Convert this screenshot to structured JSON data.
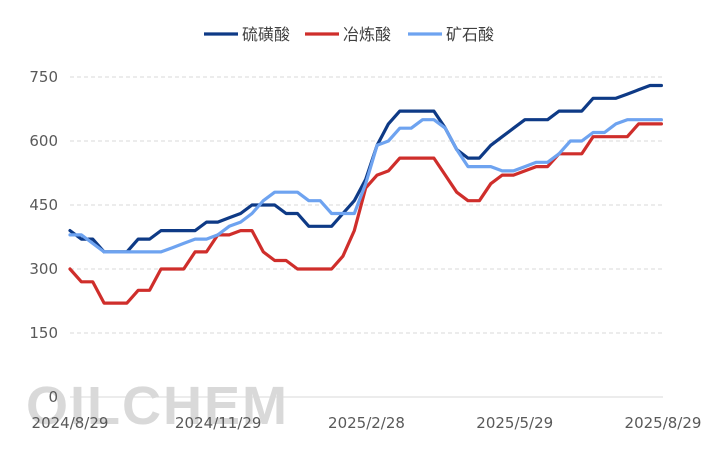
{
  "watermark": "OILCHEM",
  "chart_data": {
    "type": "line",
    "title": "",
    "xlabel": "",
    "ylabel": "",
    "ylim": [
      0,
      750
    ],
    "yticks": [
      0,
      150,
      300,
      450,
      600,
      750
    ],
    "grid": "horizontal-dashed",
    "legend": "top",
    "x_tick_labels": [
      "2024/8/29",
      "2024/11/29",
      "2025/2/28",
      "2025/5/29",
      "2025/8/29"
    ],
    "x_start": "2024-08-29",
    "x_end": "2025-08-29",
    "series": [
      {
        "name": "硫磺酸",
        "color": "#0e3a86",
        "values": [
          [
            "2024-08-29",
            390
          ],
          [
            "2024-09-05",
            370
          ],
          [
            "2024-09-12",
            370
          ],
          [
            "2024-09-19",
            340
          ],
          [
            "2024-09-26",
            340
          ],
          [
            "2024-10-03",
            340
          ],
          [
            "2024-10-10",
            370
          ],
          [
            "2024-10-17",
            370
          ],
          [
            "2024-10-24",
            390
          ],
          [
            "2024-10-31",
            390
          ],
          [
            "2024-11-07",
            390
          ],
          [
            "2024-11-14",
            390
          ],
          [
            "2024-11-21",
            410
          ],
          [
            "2024-11-28",
            410
          ],
          [
            "2024-12-05",
            420
          ],
          [
            "2024-12-12",
            430
          ],
          [
            "2024-12-19",
            450
          ],
          [
            "2024-12-26",
            450
          ],
          [
            "2025-01-02",
            450
          ],
          [
            "2025-01-09",
            430
          ],
          [
            "2025-01-16",
            430
          ],
          [
            "2025-01-23",
            400
          ],
          [
            "2025-01-30",
            400
          ],
          [
            "2025-02-06",
            400
          ],
          [
            "2025-02-13",
            430
          ],
          [
            "2025-02-20",
            460
          ],
          [
            "2025-02-27",
            510
          ],
          [
            "2025-03-06",
            590
          ],
          [
            "2025-03-13",
            640
          ],
          [
            "2025-03-20",
            670
          ],
          [
            "2025-03-27",
            670
          ],
          [
            "2025-04-03",
            670
          ],
          [
            "2025-04-10",
            670
          ],
          [
            "2025-04-17",
            630
          ],
          [
            "2025-04-24",
            580
          ],
          [
            "2025-05-01",
            560
          ],
          [
            "2025-05-08",
            560
          ],
          [
            "2025-05-15",
            590
          ],
          [
            "2025-05-22",
            610
          ],
          [
            "2025-05-29",
            630
          ],
          [
            "2025-06-05",
            650
          ],
          [
            "2025-06-12",
            650
          ],
          [
            "2025-06-19",
            650
          ],
          [
            "2025-06-26",
            670
          ],
          [
            "2025-07-03",
            670
          ],
          [
            "2025-07-10",
            670
          ],
          [
            "2025-07-17",
            700
          ],
          [
            "2025-07-24",
            700
          ],
          [
            "2025-07-31",
            700
          ],
          [
            "2025-08-07",
            710
          ],
          [
            "2025-08-14",
            720
          ],
          [
            "2025-08-21",
            730
          ],
          [
            "2025-08-28",
            730
          ]
        ]
      },
      {
        "name": "冶炼酸",
        "color": "#cf2e2b",
        "values": [
          [
            "2024-08-29",
            300
          ],
          [
            "2024-09-05",
            270
          ],
          [
            "2024-09-12",
            270
          ],
          [
            "2024-09-19",
            220
          ],
          [
            "2024-09-26",
            220
          ],
          [
            "2024-10-03",
            220
          ],
          [
            "2024-10-10",
            250
          ],
          [
            "2024-10-17",
            250
          ],
          [
            "2024-10-24",
            300
          ],
          [
            "2024-10-31",
            300
          ],
          [
            "2024-11-07",
            300
          ],
          [
            "2024-11-14",
            340
          ],
          [
            "2024-11-21",
            340
          ],
          [
            "2024-11-28",
            380
          ],
          [
            "2024-12-05",
            380
          ],
          [
            "2024-12-12",
            390
          ],
          [
            "2024-12-19",
            390
          ],
          [
            "2024-12-26",
            340
          ],
          [
            "2025-01-02",
            320
          ],
          [
            "2025-01-09",
            320
          ],
          [
            "2025-01-16",
            300
          ],
          [
            "2025-01-23",
            300
          ],
          [
            "2025-01-30",
            300
          ],
          [
            "2025-02-06",
            300
          ],
          [
            "2025-02-13",
            330
          ],
          [
            "2025-02-20",
            390
          ],
          [
            "2025-02-27",
            490
          ],
          [
            "2025-03-06",
            520
          ],
          [
            "2025-03-13",
            530
          ],
          [
            "2025-03-20",
            560
          ],
          [
            "2025-03-27",
            560
          ],
          [
            "2025-04-03",
            560
          ],
          [
            "2025-04-10",
            560
          ],
          [
            "2025-04-17",
            520
          ],
          [
            "2025-04-24",
            480
          ],
          [
            "2025-05-01",
            460
          ],
          [
            "2025-05-08",
            460
          ],
          [
            "2025-05-15",
            500
          ],
          [
            "2025-05-22",
            520
          ],
          [
            "2025-05-29",
            520
          ],
          [
            "2025-06-05",
            530
          ],
          [
            "2025-06-12",
            540
          ],
          [
            "2025-06-19",
            540
          ],
          [
            "2025-06-26",
            570
          ],
          [
            "2025-07-03",
            570
          ],
          [
            "2025-07-10",
            570
          ],
          [
            "2025-07-17",
            610
          ],
          [
            "2025-07-24",
            610
          ],
          [
            "2025-07-31",
            610
          ],
          [
            "2025-08-07",
            610
          ],
          [
            "2025-08-14",
            640
          ],
          [
            "2025-08-21",
            640
          ],
          [
            "2025-08-28",
            640
          ]
        ]
      },
      {
        "name": "矿石酸",
        "color": "#6ea3f0",
        "values": [
          [
            "2024-08-29",
            380
          ],
          [
            "2024-09-05",
            380
          ],
          [
            "2024-09-12",
            360
          ],
          [
            "2024-09-19",
            340
          ],
          [
            "2024-09-26",
            340
          ],
          [
            "2024-10-03",
            340
          ],
          [
            "2024-10-10",
            340
          ],
          [
            "2024-10-17",
            340
          ],
          [
            "2024-10-24",
            340
          ],
          [
            "2024-10-31",
            350
          ],
          [
            "2024-11-07",
            360
          ],
          [
            "2024-11-14",
            370
          ],
          [
            "2024-11-21",
            370
          ],
          [
            "2024-11-28",
            380
          ],
          [
            "2024-12-05",
            400
          ],
          [
            "2024-12-12",
            410
          ],
          [
            "2024-12-19",
            430
          ],
          [
            "2024-12-26",
            460
          ],
          [
            "2025-01-02",
            480
          ],
          [
            "2025-01-09",
            480
          ],
          [
            "2025-01-16",
            480
          ],
          [
            "2025-01-23",
            460
          ],
          [
            "2025-01-30",
            460
          ],
          [
            "2025-02-06",
            430
          ],
          [
            "2025-02-13",
            430
          ],
          [
            "2025-02-20",
            430
          ],
          [
            "2025-02-27",
            500
          ],
          [
            "2025-03-06",
            590
          ],
          [
            "2025-03-13",
            600
          ],
          [
            "2025-03-20",
            630
          ],
          [
            "2025-03-27",
            630
          ],
          [
            "2025-04-03",
            650
          ],
          [
            "2025-04-10",
            650
          ],
          [
            "2025-04-17",
            630
          ],
          [
            "2025-04-24",
            580
          ],
          [
            "2025-05-01",
            540
          ],
          [
            "2025-05-08",
            540
          ],
          [
            "2025-05-15",
            540
          ],
          [
            "2025-05-22",
            530
          ],
          [
            "2025-05-29",
            530
          ],
          [
            "2025-06-05",
            540
          ],
          [
            "2025-06-12",
            550
          ],
          [
            "2025-06-19",
            550
          ],
          [
            "2025-06-26",
            570
          ],
          [
            "2025-07-03",
            600
          ],
          [
            "2025-07-10",
            600
          ],
          [
            "2025-07-17",
            620
          ],
          [
            "2025-07-24",
            620
          ],
          [
            "2025-07-31",
            640
          ],
          [
            "2025-08-07",
            650
          ],
          [
            "2025-08-14",
            650
          ],
          [
            "2025-08-21",
            650
          ],
          [
            "2025-08-28",
            650
          ]
        ]
      }
    ]
  }
}
